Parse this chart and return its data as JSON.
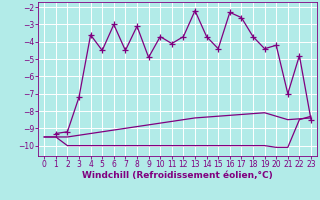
{
  "title": "",
  "xlabel": "Windchill (Refroidissement éolien,°C)",
  "bg_color": "#b2ebe8",
  "grid_color": "#ffffff",
  "line_color": "#800080",
  "xlim": [
    -0.5,
    23.5
  ],
  "ylim": [
    -10.6,
    -1.7
  ],
  "yticks": [
    -10,
    -9,
    -8,
    -7,
    -6,
    -5,
    -4,
    -3,
    -2
  ],
  "xticks": [
    0,
    1,
    2,
    3,
    4,
    5,
    6,
    7,
    8,
    9,
    10,
    11,
    12,
    13,
    14,
    15,
    16,
    17,
    18,
    19,
    20,
    21,
    22,
    23
  ],
  "series1_x": [
    1,
    2,
    3,
    4,
    5,
    6,
    7,
    8,
    9,
    10,
    11,
    12,
    13,
    14,
    15,
    16,
    17,
    18,
    19,
    20,
    21,
    22,
    23
  ],
  "series1_y": [
    -9.3,
    -9.2,
    -7.2,
    -3.6,
    -4.5,
    -3.0,
    -4.5,
    -3.1,
    -4.9,
    -3.7,
    -4.1,
    -3.7,
    -2.2,
    -3.7,
    -4.4,
    -2.3,
    -2.6,
    -3.7,
    -4.4,
    -4.2,
    -7.0,
    -4.8,
    -8.5
  ],
  "series2_x": [
    0,
    1,
    2,
    3,
    4,
    5,
    6,
    7,
    8,
    9,
    10,
    11,
    12,
    13,
    14,
    15,
    16,
    17,
    18,
    19,
    20,
    21,
    22,
    23
  ],
  "series2_y": [
    -9.5,
    -9.5,
    -9.5,
    -9.4,
    -9.3,
    -9.2,
    -9.1,
    -9.0,
    -8.9,
    -8.8,
    -8.7,
    -8.6,
    -8.5,
    -8.4,
    -8.35,
    -8.3,
    -8.25,
    -8.2,
    -8.15,
    -8.1,
    -8.3,
    -8.5,
    -8.45,
    -8.4
  ],
  "series3_x": [
    0,
    1,
    2,
    3,
    4,
    5,
    6,
    7,
    8,
    9,
    10,
    11,
    12,
    13,
    14,
    15,
    16,
    17,
    18,
    19,
    20,
    21,
    22,
    23
  ],
  "series3_y": [
    -9.5,
    -9.5,
    -10.0,
    -10.0,
    -10.0,
    -10.0,
    -10.0,
    -10.0,
    -10.0,
    -10.0,
    -10.0,
    -10.0,
    -10.0,
    -10.0,
    -10.0,
    -10.0,
    -10.0,
    -10.0,
    -10.0,
    -10.0,
    -10.1,
    -10.1,
    -8.5,
    -8.3
  ],
  "line_width": 0.9,
  "font_size_ticks": 5.5,
  "font_size_label": 6.5
}
